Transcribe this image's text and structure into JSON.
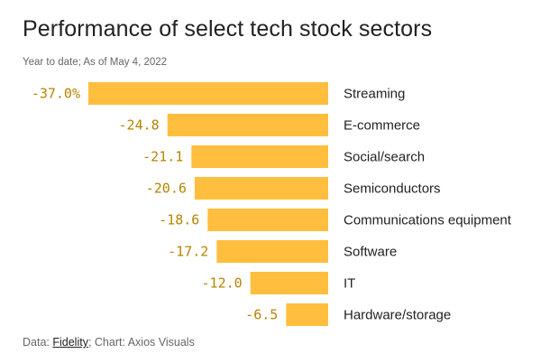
{
  "header": {
    "title": "Performance of select tech stock sectors",
    "subtitle": "Year to date; As of May 4, 2022"
  },
  "footer": {
    "data_prefix": "Data: ",
    "data_source": "Fidelity",
    "chart_credit": "; Chart: Axios Visuals"
  },
  "colors": {
    "bar": "#ffbe3d",
    "value_label": "#b88400",
    "text": "#222222",
    "muted": "#666666"
  },
  "chart_data": {
    "type": "bar",
    "orientation": "horizontal",
    "title": "Performance of select tech stock sectors",
    "subtitle": "Year to date; As of May 4, 2022",
    "xlabel": "",
    "ylabel": "",
    "unit": "%",
    "categories": [
      "Streaming",
      "E-commerce",
      "Social/search",
      "Semiconductors",
      "Communications equipment",
      "Software",
      "IT",
      "Hardware/storage"
    ],
    "values": [
      -37.0,
      -24.8,
      -21.1,
      -20.6,
      -18.6,
      -17.2,
      -12.0,
      -6.5
    ],
    "value_labels": [
      "-37.0%",
      "-24.8",
      "-21.1",
      "-20.6",
      "-18.6",
      "-17.2",
      "-12.0",
      "-6.5"
    ],
    "xlim": [
      -37.0,
      0
    ],
    "grid": false,
    "legend": "none"
  }
}
